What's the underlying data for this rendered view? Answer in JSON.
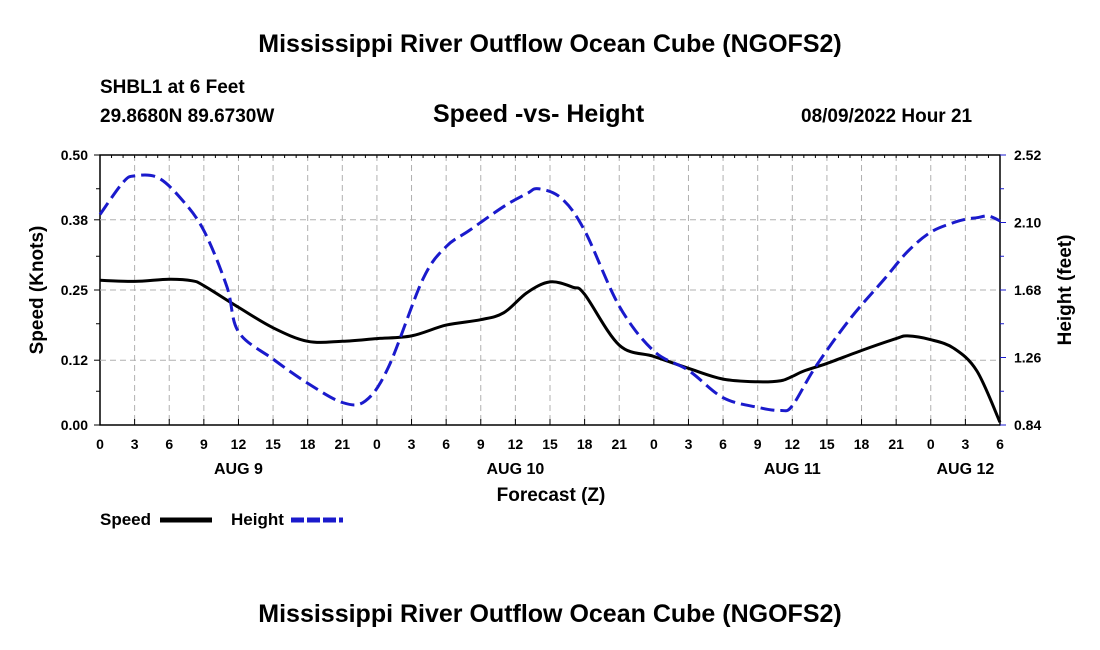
{
  "chart_data": {
    "type": "line",
    "title": "Mississippi River Outflow Ocean Cube (NGOFS2)",
    "station": "SHBL1 at 6 Feet",
    "coords": "29.8680N  89.6730W",
    "subtitle": "Speed -vs- Height",
    "datetime": "08/09/2022 Hour 21",
    "xlabel": "Forecast (Z)",
    "ylabel_left": "Speed (Knots)",
    "ylabel_right": "Height (feet)",
    "ylim_left": [
      0,
      0.5
    ],
    "ylim_right": [
      0.84,
      2.52
    ],
    "yticks_left": [
      "0.00",
      "0.12",
      "0.25",
      "0.38",
      "0.50"
    ],
    "yticks_right": [
      "0.84",
      "1.26",
      "1.68",
      "2.10",
      "2.52"
    ],
    "xlim_hours": [
      0,
      78
    ],
    "xtick_labels": [
      "0",
      "3",
      "6",
      "9",
      "12",
      "15",
      "18",
      "21",
      "0",
      "3",
      "6",
      "9",
      "12",
      "15",
      "18",
      "21",
      "0",
      "3",
      "6",
      "9",
      "12",
      "15",
      "18",
      "21",
      "0",
      "3",
      "6"
    ],
    "date_labels": [
      {
        "label": "AUG 9",
        "hour": 12
      },
      {
        "label": "AUG 10",
        "hour": 36
      },
      {
        "label": "AUG 11",
        "hour": 60
      },
      {
        "label": "AUG 12",
        "hour": 75
      }
    ],
    "series": [
      {
        "name": "Speed",
        "axis": "left",
        "color": "#000000",
        "style": "solid",
        "x": [
          0,
          3,
          6,
          8,
          9,
          12,
          15,
          18,
          21,
          24,
          27,
          30,
          33,
          35,
          37,
          39,
          41,
          42,
          45,
          48,
          51,
          54,
          57,
          59,
          60,
          61,
          63,
          66,
          69,
          70,
          72,
          74,
          76,
          78
        ],
        "values": [
          0.268,
          0.266,
          0.27,
          0.267,
          0.258,
          0.218,
          0.18,
          0.155,
          0.155,
          0.16,
          0.165,
          0.185,
          0.195,
          0.208,
          0.245,
          0.265,
          0.255,
          0.242,
          0.148,
          0.127,
          0.105,
          0.085,
          0.08,
          0.082,
          0.09,
          0.1,
          0.114,
          0.138,
          0.16,
          0.165,
          0.158,
          0.142,
          0.1,
          0.005
        ]
      },
      {
        "name": "Height",
        "axis": "right",
        "color": "#1a1acc",
        "style": "dashed",
        "x": [
          0,
          2,
          3,
          5,
          7,
          9,
          11,
          12,
          15,
          18,
          21,
          23,
          25,
          28,
          30,
          32,
          35,
          37,
          38,
          40,
          42,
          45,
          48,
          51,
          54,
          57,
          59,
          60,
          62,
          65,
          68,
          70,
          72,
          74,
          75,
          76,
          77,
          78
        ],
        "values": [
          2.15,
          2.35,
          2.39,
          2.38,
          2.25,
          2.05,
          1.7,
          1.42,
          1.25,
          1.1,
          0.98,
          0.99,
          1.2,
          1.75,
          1.95,
          2.05,
          2.2,
          2.28,
          2.31,
          2.25,
          2.05,
          1.58,
          1.3,
          1.18,
          1.01,
          0.95,
          0.93,
          0.96,
          1.2,
          1.5,
          1.75,
          1.92,
          2.04,
          2.1,
          2.12,
          2.13,
          2.14,
          2.11
        ]
      }
    ]
  },
  "footer_title": "Mississippi River Outflow Ocean Cube (NGOFS2)",
  "legend": {
    "speed_label": "Speed",
    "height_label": "Height",
    "speed_color": "#000000",
    "height_color": "#1a1acc"
  }
}
